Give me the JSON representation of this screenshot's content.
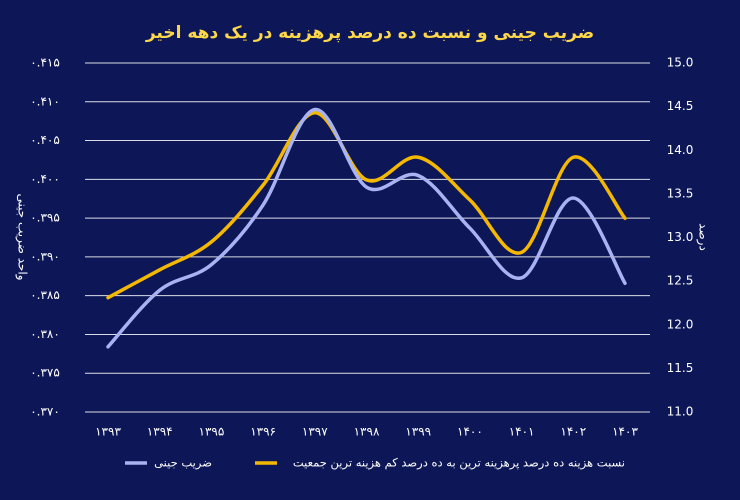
{
  "chart_data": {
    "type": "line",
    "title": "ضریب جینی و نسبت ده درصد پرهزینه در یک دهه اخیر",
    "y_label": "واحد ضریب جینی",
    "y2_label": "درصد",
    "categories": [
      "۱۳۹۳",
      "۱۳۹۴",
      "۱۳۹۵",
      "۱۳۹۶",
      "۱۳۹۷",
      "۱۳۹۸",
      "۱۳۹۹",
      "۱۴۰۰",
      "۱۴۰۱",
      "۱۴۰۲",
      "۱۴۰۳"
    ],
    "series": [
      {
        "name": "ضریب جینی",
        "color": "#a9b3f2",
        "axis": "y",
        "values": [
          0.3784,
          0.3857,
          0.389,
          0.3967,
          0.409,
          0.399,
          0.4005,
          0.3937,
          0.3873,
          0.3976,
          0.3866
        ]
      },
      {
        "name": "نسبت هزینه ده درصد پرهزینه ترین به ده درصد کم هزینه ترین جمعیت",
        "color": "#f5b800",
        "axis": "y2",
        "values": [
          12.31,
          12.63,
          12.95,
          13.6,
          14.43,
          13.66,
          13.92,
          13.43,
          12.83,
          13.92,
          13.22
        ]
      }
    ],
    "ylim": [
      0.37,
      0.415
    ],
    "yticks": [
      {
        "value": 0.37,
        "label": "۰.۳۷۰"
      },
      {
        "value": 0.375,
        "label": "۰.۳۷۵"
      },
      {
        "value": 0.38,
        "label": "۰.۳۸۰"
      },
      {
        "value": 0.385,
        "label": "۰.۳۸۵"
      },
      {
        "value": 0.39,
        "label": "۰.۳۹۰"
      },
      {
        "value": 0.395,
        "label": "۰.۳۹۵"
      },
      {
        "value": 0.4,
        "label": "۰.۴۰۰"
      },
      {
        "value": 0.405,
        "label": "۰.۴۰۵"
      },
      {
        "value": 0.41,
        "label": "۰.۴۱۰"
      },
      {
        "value": 0.415,
        "label": "۰.۴۱۵"
      }
    ],
    "y2lim": [
      11,
      15
    ],
    "y2ticks": [
      {
        "value": 11,
        "label": "11.0"
      },
      {
        "value": 11.5,
        "label": "11.5"
      },
      {
        "value": 12,
        "label": "12.0"
      },
      {
        "value": 12.5,
        "label": "12.5"
      },
      {
        "value": 13,
        "label": "13.0"
      },
      {
        "value": 13.5,
        "label": "13.5"
      },
      {
        "value": 14,
        "label": "14.0"
      },
      {
        "value": 14.5,
        "label": "14.5"
      },
      {
        "value": 15,
        "label": "15.0"
      }
    ],
    "grid": true
  }
}
